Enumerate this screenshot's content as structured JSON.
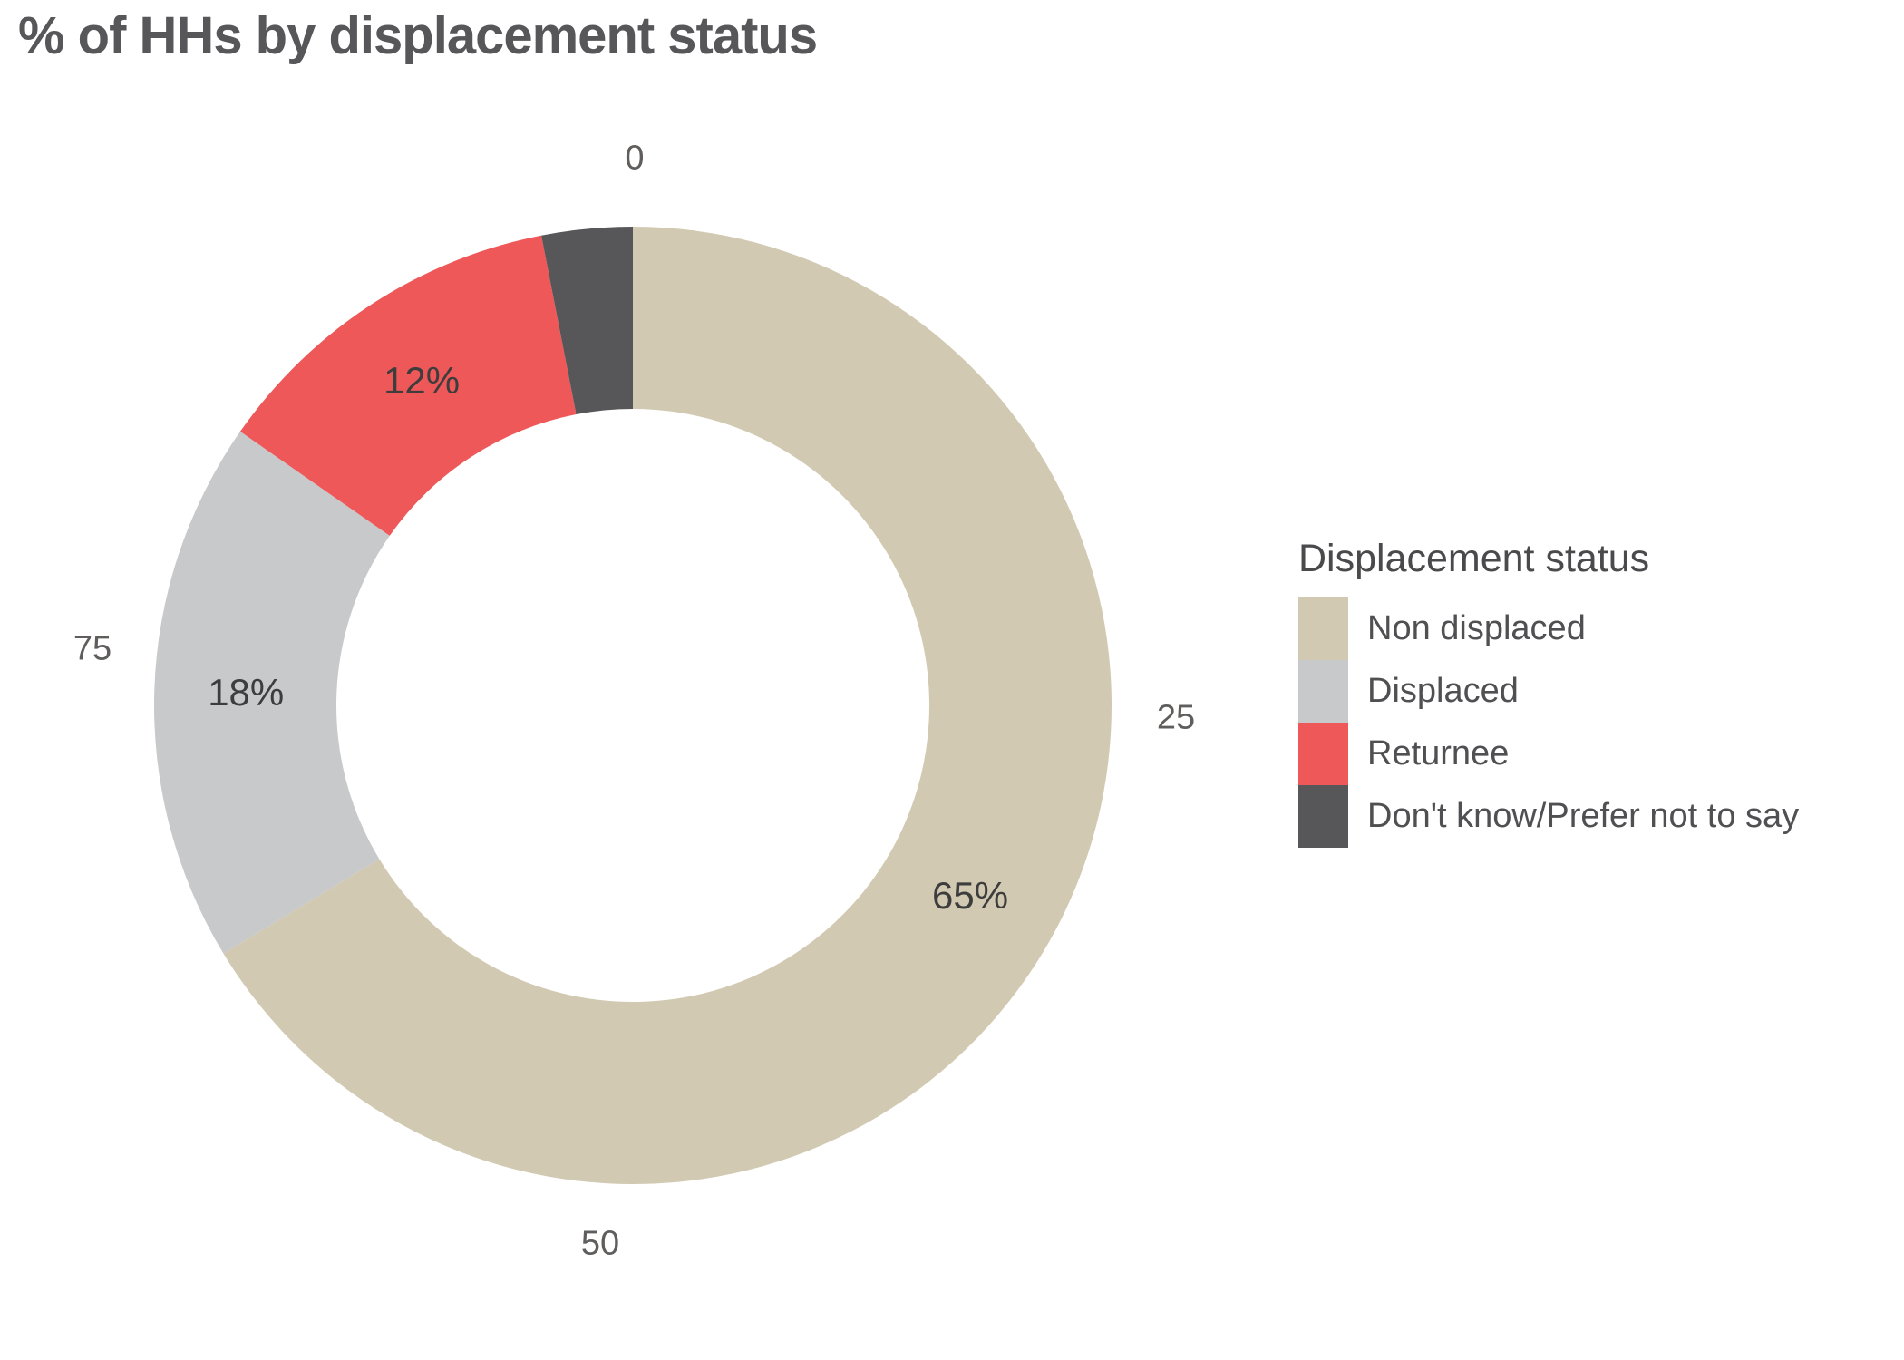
{
  "title": "% of HHs by displacement status",
  "chart_data": {
    "type": "pie",
    "subtype": "donut",
    "title": "% of HHs by displacement status",
    "legend_title": "Displacement status",
    "legend_position": "right",
    "categories": [
      "Non displaced",
      "Displaced",
      "Returnee",
      "Don't know/Prefer not to say"
    ],
    "values": [
      65,
      18,
      12,
      3
    ],
    "unit": "%",
    "slice_labels": [
      "65%",
      "18%",
      "12%",
      ""
    ],
    "slice_colors": [
      "#d1c9b1",
      "#c8c9cb",
      "#ee5859",
      "#57575a"
    ],
    "axis_ticks": [
      {
        "label": "0",
        "position": "top"
      },
      {
        "label": "25",
        "position": "right"
      },
      {
        "label": "50",
        "position": "bottom"
      },
      {
        "label": "75",
        "position": "left"
      }
    ],
    "start_angle_deg": 0,
    "clockwise": true,
    "grid": false
  },
  "colors": {
    "background": "#ffffff",
    "title_text": "#57575a",
    "slice_label_text": "#3d3d3d",
    "tick_text": "#605e5c",
    "legend_title_text": "#4a4a4d",
    "legend_item_text": "#505053"
  }
}
